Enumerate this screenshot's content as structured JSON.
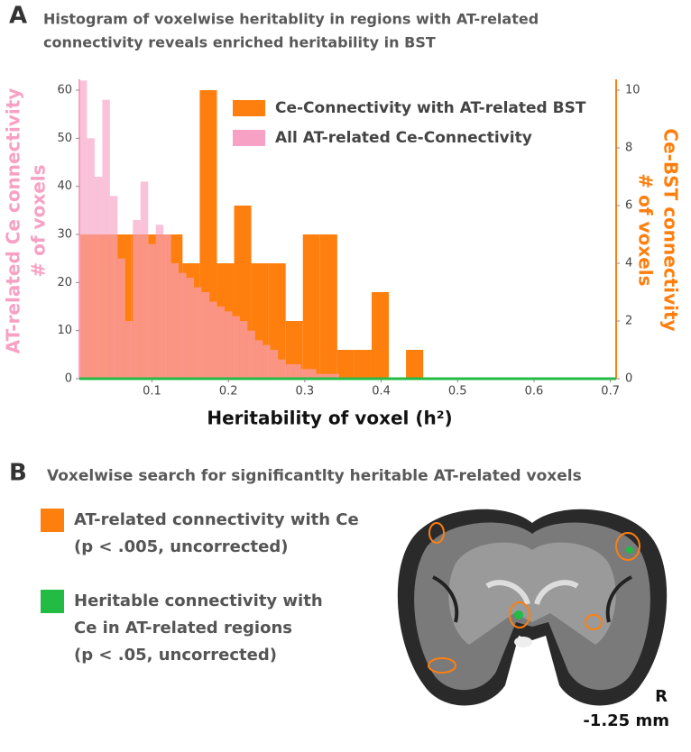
{
  "panel_a": {
    "label": "A",
    "title_lines": [
      "Histogram of voxelwise heritablity in regions with AT-related",
      "connectivity reveals enriched heritability in BST"
    ]
  },
  "chart_data": {
    "type": "histogram",
    "xlabel": "Heritability of voxel (h²)",
    "ylabel_lines": [
      "AT-related Ce connectivity",
      "# of voxels"
    ],
    "y2label_lines": [
      "Ce-BST connectivity",
      "# of voxels"
    ],
    "xlim": [
      0.005,
      0.7075
    ],
    "xticks": [
      0.1,
      0.2,
      0.3,
      0.4,
      0.5,
      0.6,
      0.7
    ],
    "ylim": [
      0,
      62.25
    ],
    "yticks": [
      0,
      10,
      20,
      30,
      40,
      50,
      60
    ],
    "y2lim": [
      0,
      10.375
    ],
    "y2ticks": [
      0,
      2,
      4,
      6,
      8,
      10
    ],
    "series": [
      {
        "name": "Ce-Connectivity with AT-related BST",
        "color": "#ff7f0e",
        "axis": "y2",
        "bins": [
          0.005,
          0.0275,
          0.05,
          0.0725,
          0.095,
          0.1175,
          0.14,
          0.1625,
          0.185,
          0.2075,
          0.23,
          0.2525,
          0.275,
          0.2975,
          0.32,
          0.3425,
          0.365,
          0.3875,
          0.41,
          0.4325,
          0.455
        ],
        "values": [
          5,
          5,
          5,
          5,
          5,
          5,
          4,
          10,
          4,
          6,
          4,
          4,
          2,
          5,
          5,
          1,
          1,
          3,
          0,
          1
        ]
      },
      {
        "name": "All AT-related Ce-Connectivity",
        "color": "#f7a1c4",
        "axis": "y",
        "bins": [
          0.005,
          0.015,
          0.025,
          0.035,
          0.045,
          0.055,
          0.065,
          0.075,
          0.085,
          0.095,
          0.105,
          0.115,
          0.125,
          0.135,
          0.145,
          0.155,
          0.165,
          0.175,
          0.185,
          0.195,
          0.205,
          0.215,
          0.225,
          0.235,
          0.245,
          0.255,
          0.265,
          0.275,
          0.285,
          0.295,
          0.305,
          0.315,
          0.325,
          0.335,
          0.345
        ],
        "values": [
          62,
          50,
          42,
          58,
          38,
          25,
          12,
          33,
          41,
          28,
          32,
          30,
          24,
          22,
          21,
          19,
          18,
          16,
          15,
          14,
          13,
          12,
          10,
          8,
          7,
          6,
          4,
          3,
          3,
          2,
          2,
          1,
          1,
          1
        ]
      }
    ]
  },
  "panel_b": {
    "label": "B",
    "title": "Voxelwise search for significantlty heritable AT-related voxels",
    "legend": [
      {
        "lines": [
          "AT-related connectivity with Ce",
          "(p < .005, uncorrected)"
        ]
      },
      {
        "lines": [
          "Heritable connectivity with",
          "Ce in AT-related regions",
          "(p < .05, uncorrected)"
        ]
      }
    ],
    "orientation": "R",
    "slice": "-1.25 mm"
  }
}
